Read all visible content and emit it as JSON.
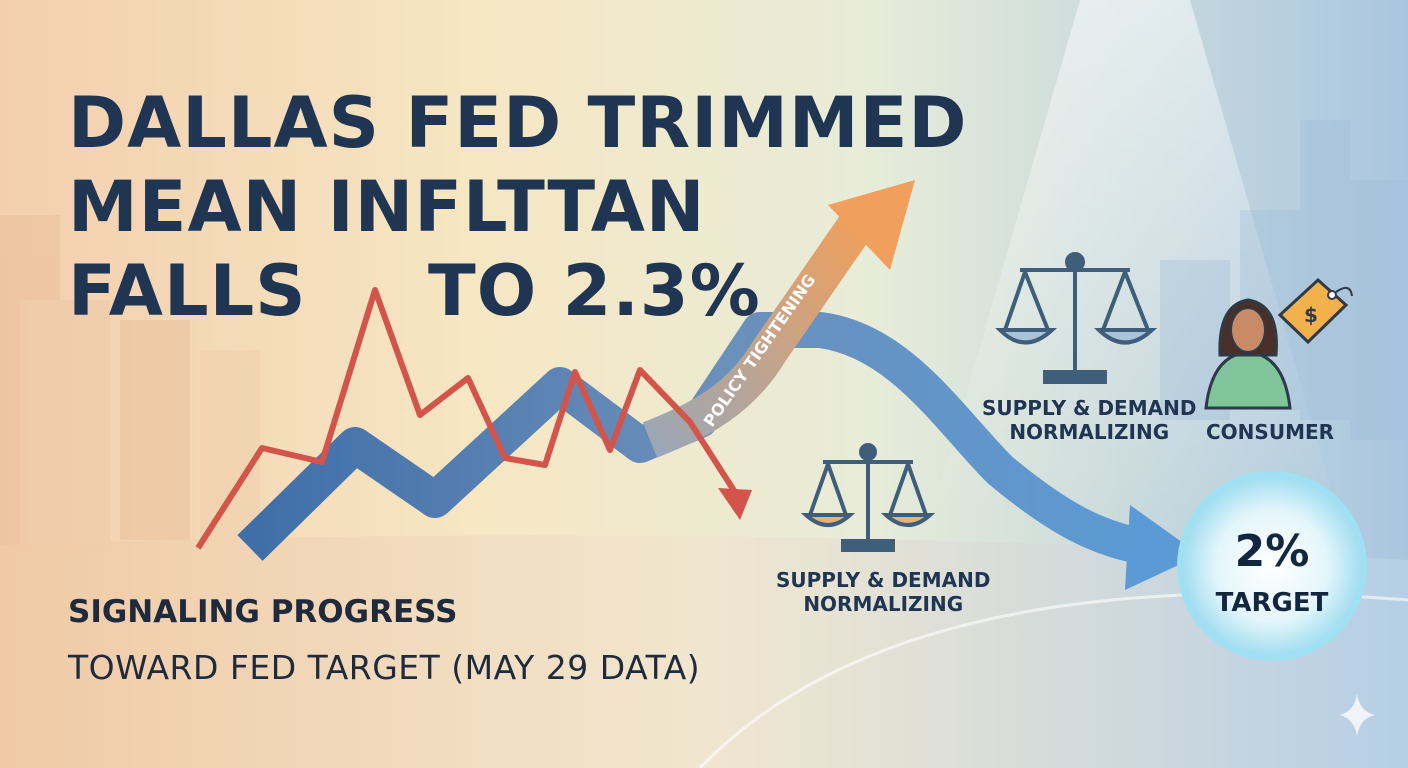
{
  "headline": {
    "line1": "DALLAS FED TRIMMED",
    "line2": "MEAN INFLTTAN",
    "line3a": "FALLS",
    "line3b": "TO 2.3%"
  },
  "subheadline": {
    "line1": "SIGNALING PROGRESS",
    "line2": "TOWARD FED TARGET (MAY 29 DATA)"
  },
  "arrow_label": "POLICY TIGHTENING",
  "labels": {
    "supply_demand_upper_1": "SUPPLY & DEMAND",
    "supply_demand_upper_2": "NORMALIZING",
    "supply_demand_lower_1": "SUPPLY & DEMAND",
    "supply_demand_lower_2": "NORMALIZING",
    "consumer": "CONSUMER"
  },
  "target": {
    "value": "2%",
    "label": "TARGET"
  },
  "price_tag_symbol": "$",
  "colors": {
    "headline": "#1f3552",
    "red_line": "#d2544a",
    "blue_arrow": "#4a78b4",
    "orange_arrow": "#e99a5a",
    "target_glow": "#bfe8f5"
  },
  "icons": [
    "balance-scale-icon",
    "consumer-person-icon",
    "price-tag-icon",
    "sparkle-icon"
  ]
}
